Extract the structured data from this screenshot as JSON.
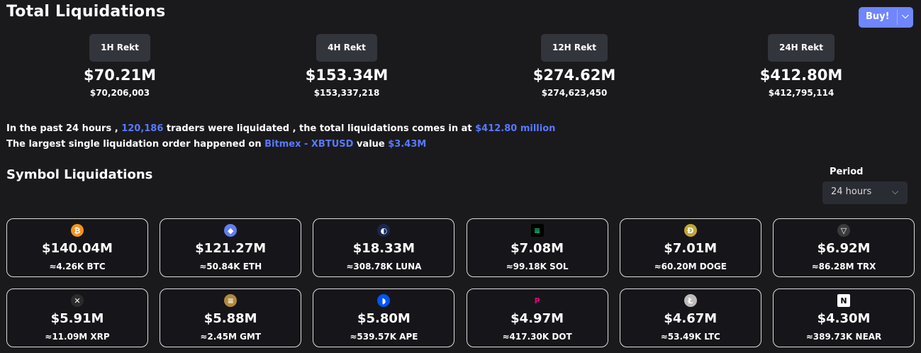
{
  "header": {
    "title": "Total Liquidations",
    "buy_label": "Buy!",
    "buy_chevron": "⌵"
  },
  "periods": [
    {
      "label": "1H Rekt",
      "amount": "$70.21M",
      "exact": "$70,206,003"
    },
    {
      "label": "4H Rekt",
      "amount": "$153.34M",
      "exact": "$153,337,218"
    },
    {
      "label": "12H Rekt",
      "amount": "$274.62M",
      "exact": "$274,623,450"
    },
    {
      "label": "24H Rekt",
      "amount": "$412.80M",
      "exact": "$412,795,114"
    }
  ],
  "summary": {
    "line1_a": "In the past 24 hours , ",
    "traders": "120,186",
    "line1_b": " traders were liquidated , the total liquidations comes in at ",
    "total": "$412.80 million",
    "line2_a": "The largest single liquidation order happened on ",
    "exchange": "Bitmex - XBTUSD",
    "line2_b": " value ",
    "largest": "$3.43M"
  },
  "symbols_section": {
    "title": "Symbol Liquidations",
    "period_label": "Period",
    "period_value": "24 hours",
    "period_chevron": "⌵"
  },
  "symbols": [
    {
      "icon": "bitcoin-icon",
      "glyph": "₿",
      "color": "#f7931a",
      "amount": "$140.04M",
      "qty": "≈4.26K BTC"
    },
    {
      "icon": "ethereum-icon",
      "glyph": "◆",
      "color": "#627eea",
      "amount": "$121.27M",
      "qty": "≈50.84K ETH"
    },
    {
      "icon": "luna-icon",
      "glyph": "◐",
      "color": "#172852",
      "amount": "$18.33M",
      "qty": "≈308.78K LUNA"
    },
    {
      "icon": "solana-icon",
      "glyph": "≡",
      "color": "#000000",
      "amount": "$7.08M",
      "qty": "≈99.18K SOL"
    },
    {
      "icon": "dogecoin-icon",
      "glyph": "Ð",
      "color": "#c2a633",
      "amount": "$7.01M",
      "qty": "≈60.20M DOGE"
    },
    {
      "icon": "tron-icon",
      "glyph": "▽",
      "color": "#3a3a3a",
      "amount": "$6.92M",
      "qty": "≈86.28M TRX"
    },
    {
      "icon": "xrp-icon",
      "glyph": "✕",
      "color": "#2b2b2b",
      "amount": "$5.91M",
      "qty": "≈11.09M XRP"
    },
    {
      "icon": "gmt-icon",
      "glyph": "≡",
      "color": "#b08a3c",
      "amount": "$5.88M",
      "qty": "≈2.45M GMT"
    },
    {
      "icon": "apecoin-icon",
      "glyph": "◗",
      "color": "#0054f9",
      "amount": "$5.80M",
      "qty": "≈539.57K APE"
    },
    {
      "icon": "polkadot-icon",
      "glyph": "P",
      "color": "#16161a",
      "amount": "$4.97M",
      "qty": "≈417.30K DOT"
    },
    {
      "icon": "litecoin-icon",
      "glyph": "Ł",
      "color": "#bfbbbb",
      "amount": "$4.67M",
      "qty": "≈53.49K LTC"
    },
    {
      "icon": "near-icon",
      "glyph": "N",
      "color": "#ffffff",
      "amount": "$4.30M",
      "qty": "≈389.73K NEAR"
    }
  ]
}
